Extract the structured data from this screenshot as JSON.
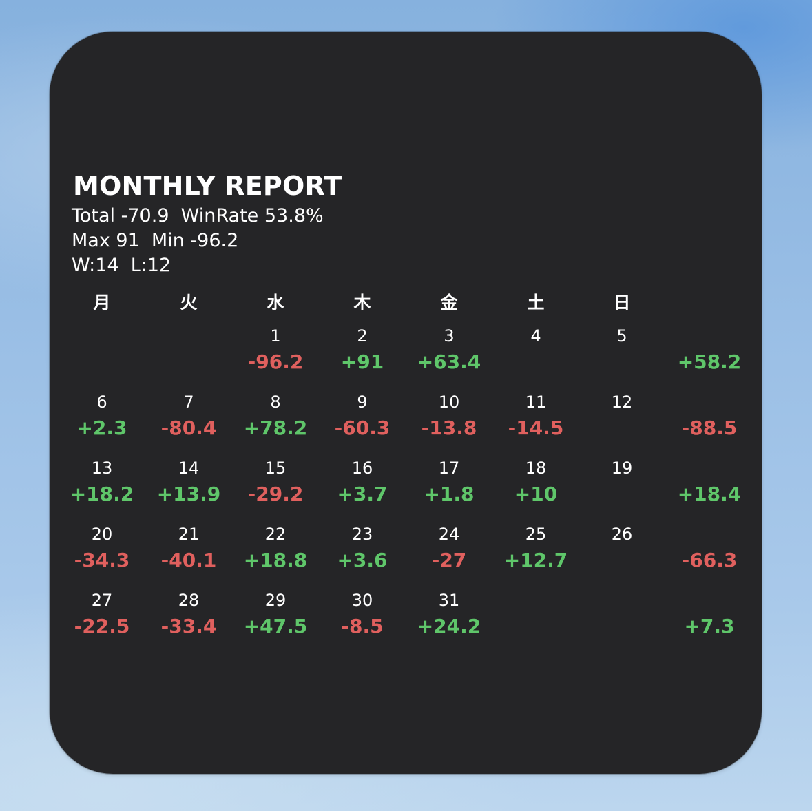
{
  "title": "MONTHLY REPORT",
  "stats": {
    "line1": "Total -70.9  WinRate 53.8%",
    "line2": "Max 91  Min -96.2",
    "line3": "W:14  L:12"
  },
  "weekdays": [
    "月",
    "火",
    "水",
    "木",
    "金",
    "土",
    "日"
  ],
  "colors": {
    "positive": "#5fc66a",
    "negative": "#e0605e",
    "widget_bg": "#252527"
  },
  "weeks": [
    {
      "days": [
        {
          "day": "",
          "value": ""
        },
        {
          "day": "",
          "value": ""
        },
        {
          "day": "1",
          "value": "-96.2"
        },
        {
          "day": "2",
          "value": "+91"
        },
        {
          "day": "3",
          "value": "+63.4"
        },
        {
          "day": "4",
          "value": ""
        },
        {
          "day": "5",
          "value": ""
        }
      ],
      "weekly_total": "+58.2"
    },
    {
      "days": [
        {
          "day": "6",
          "value": "+2.3"
        },
        {
          "day": "7",
          "value": "-80.4"
        },
        {
          "day": "8",
          "value": "+78.2"
        },
        {
          "day": "9",
          "value": "-60.3"
        },
        {
          "day": "10",
          "value": "-13.8"
        },
        {
          "day": "11",
          "value": "-14.5"
        },
        {
          "day": "12",
          "value": ""
        }
      ],
      "weekly_total": "-88.5"
    },
    {
      "days": [
        {
          "day": "13",
          "value": "+18.2"
        },
        {
          "day": "14",
          "value": "+13.9"
        },
        {
          "day": "15",
          "value": "-29.2"
        },
        {
          "day": "16",
          "value": "+3.7"
        },
        {
          "day": "17",
          "value": "+1.8"
        },
        {
          "day": "18",
          "value": "+10"
        },
        {
          "day": "19",
          "value": ""
        }
      ],
      "weekly_total": "+18.4"
    },
    {
      "days": [
        {
          "day": "20",
          "value": "-34.3"
        },
        {
          "day": "21",
          "value": "-40.1"
        },
        {
          "day": "22",
          "value": "+18.8"
        },
        {
          "day": "23",
          "value": "+3.6"
        },
        {
          "day": "24",
          "value": "-27"
        },
        {
          "day": "25",
          "value": "+12.7"
        },
        {
          "day": "26",
          "value": ""
        }
      ],
      "weekly_total": "-66.3"
    },
    {
      "days": [
        {
          "day": "27",
          "value": "-22.5"
        },
        {
          "day": "28",
          "value": "-33.4"
        },
        {
          "day": "29",
          "value": "+47.5"
        },
        {
          "day": "30",
          "value": "-8.5"
        },
        {
          "day": "31",
          "value": "+24.2"
        },
        {
          "day": "",
          "value": ""
        },
        {
          "day": "",
          "value": ""
        }
      ],
      "weekly_total": "+7.3"
    }
  ]
}
